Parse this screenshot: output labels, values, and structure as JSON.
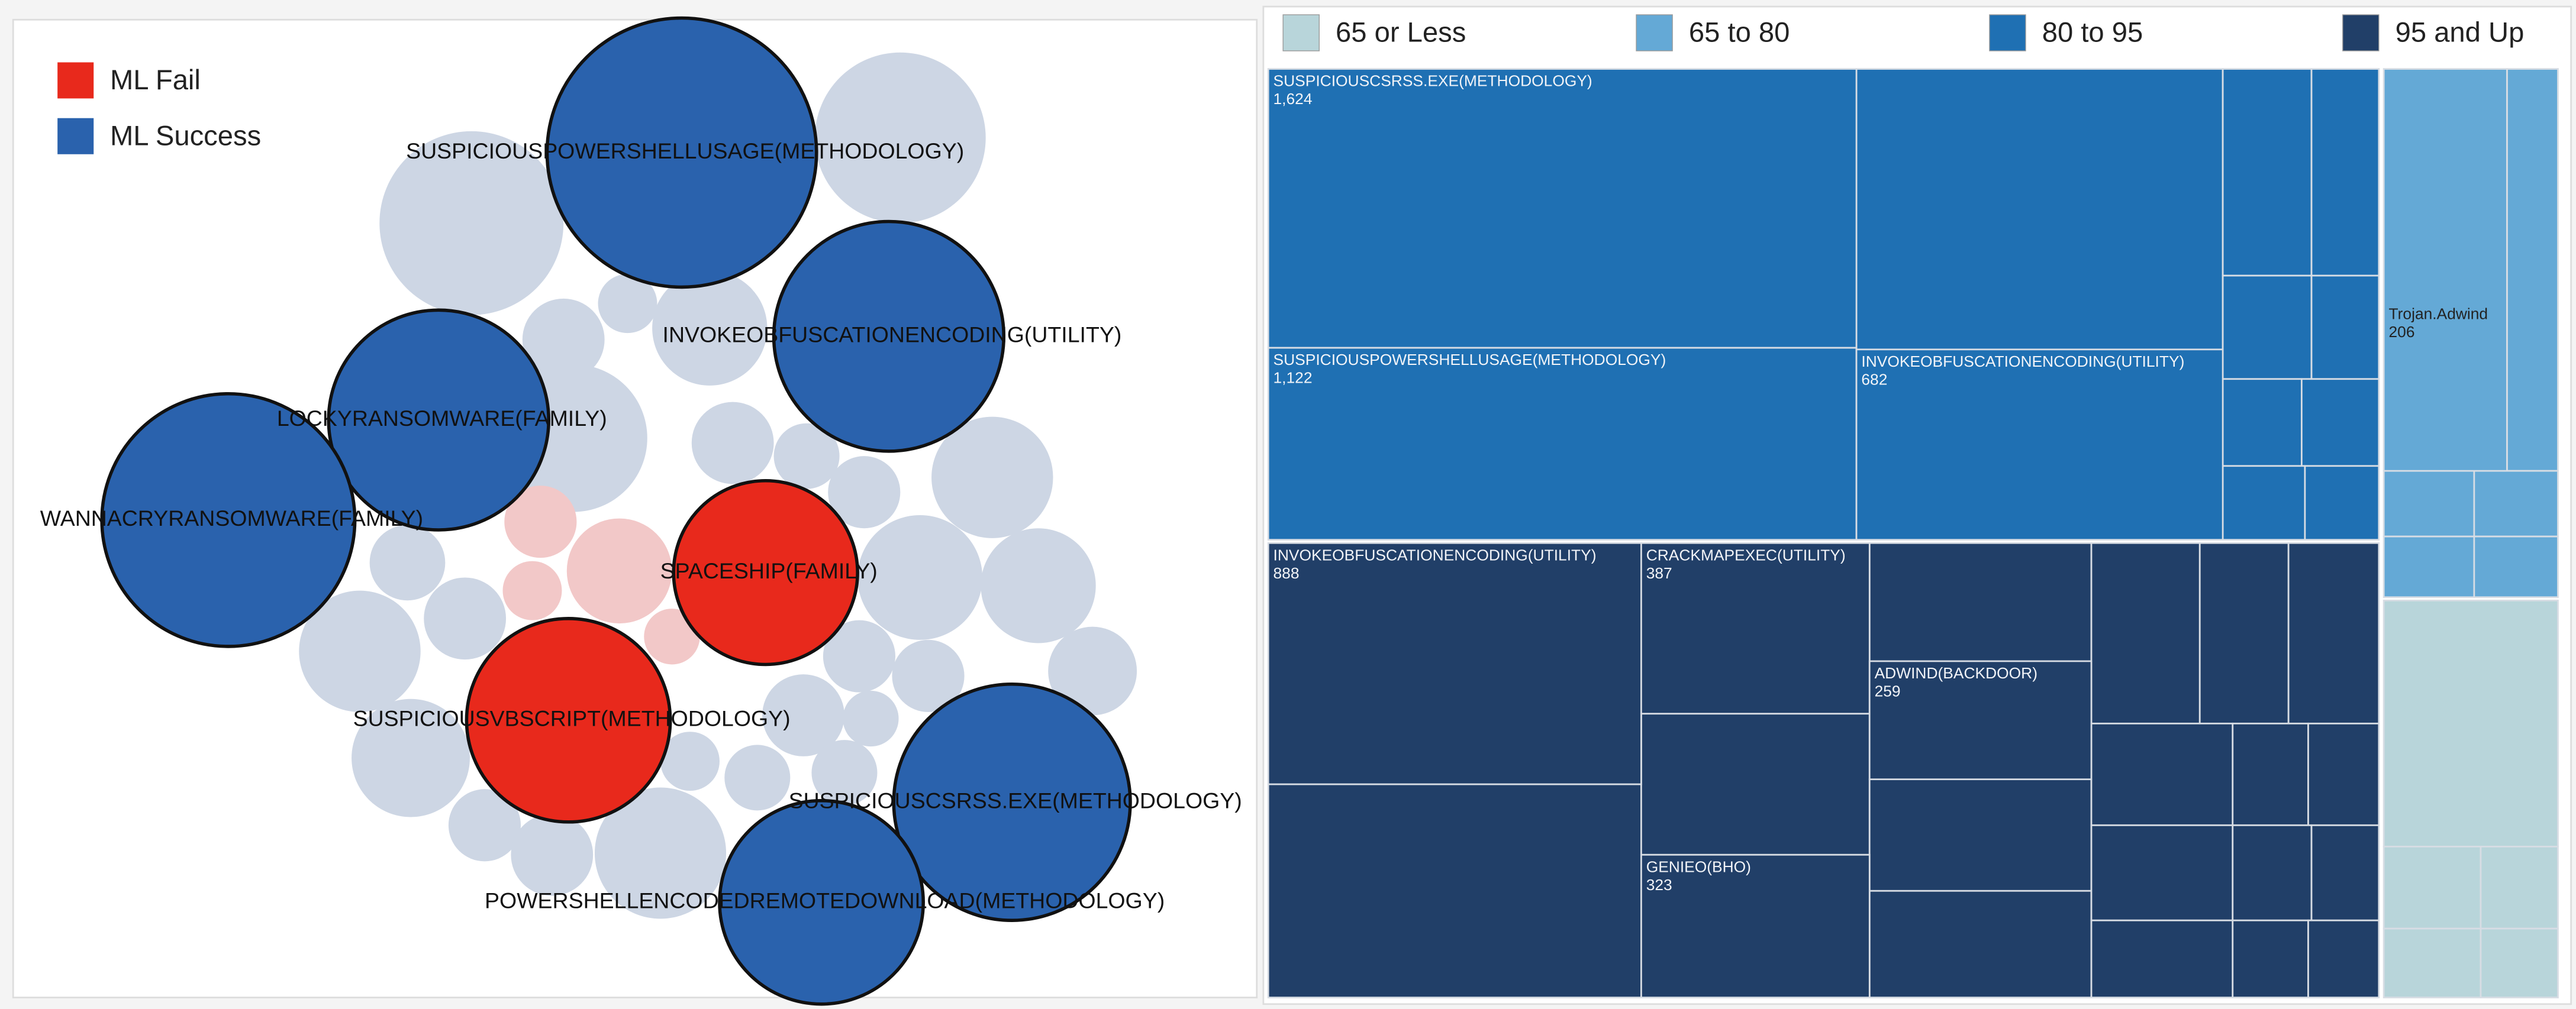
{
  "chart_data": [
    {
      "type": "bubble",
      "series": [
        {
          "name": "ML Fail",
          "color": "#e8291c",
          "labels": [
            "SPACESHIP(FAMILY)",
            "SUSPICIOUSVBSCRIPT(METHODOLOGY)"
          ],
          "values": [
            784,
            961
          ]
        },
        {
          "name": "ML Success",
          "color": "#2a62ad",
          "labels": [
            "SUSPICIOUSPOWERSHELLUSAGE(METHODOLOGY)",
            "INVOKEOBFUSCATIONENCODING(UTILITY)",
            "LOCKYRANSOMWARE(FAMILY)",
            "WANNACRYRANSOMWARE(FAMILY)",
            "SUSPICIOUSCSRSS.EXE(METHODOLOGY)",
            "POWERSHELLENCODEDREMOTEDOWNLOAD(METHODOLOGY)"
          ],
          "values": [
            1681,
            1225,
            1122,
            1482,
            1296,
            961
          ]
        }
      ]
    },
    {
      "type": "treemap",
      "legend": [
        {
          "name": "65 or Less",
          "color": "#b8d5da"
        },
        {
          "name": "65 to 80",
          "color": "#64a9d6"
        },
        {
          "name": "80 to 95",
          "color": "#1f70b3"
        },
        {
          "name": "95 and Up",
          "color": "#213f68"
        }
      ],
      "items": [
        {
          "name": "SUSPICIOUSCSRSS.EXE(METHODOLOGY)",
          "value": 1624,
          "value_label": "1,624",
          "group": "80 to 95"
        },
        {
          "name": "SUSPICIOUSPOWERSHELLUSAGE(METHODOLOGY)",
          "value": 1122,
          "value_label": "1,122",
          "group": "80 to 95"
        },
        {
          "name": "INVOKEOBFUSCATIONENCODING(UTILITY)",
          "value": 682,
          "value_label": "682",
          "group": "80 to 95"
        },
        {
          "name": "INVOKEOBFUSCATIONENCODING(UTILITY)",
          "value": 888,
          "value_label": "888",
          "group": "95 and Up"
        },
        {
          "name": "CRACKMAPEXEC(UTILITY)",
          "value": 387,
          "value_label": "387",
          "group": "95 and Up"
        },
        {
          "name": "ADWIND(BACKDOOR)",
          "value": 259,
          "value_label": "259",
          "group": "95 and Up"
        },
        {
          "name": "GENIEO(BHO)",
          "value": 323,
          "value_label": "323",
          "group": "95 and Up"
        },
        {
          "name": "Trojan.Adwind",
          "value": 206,
          "value_label": "206",
          "group": "65 to 80"
        }
      ]
    }
  ]
}
